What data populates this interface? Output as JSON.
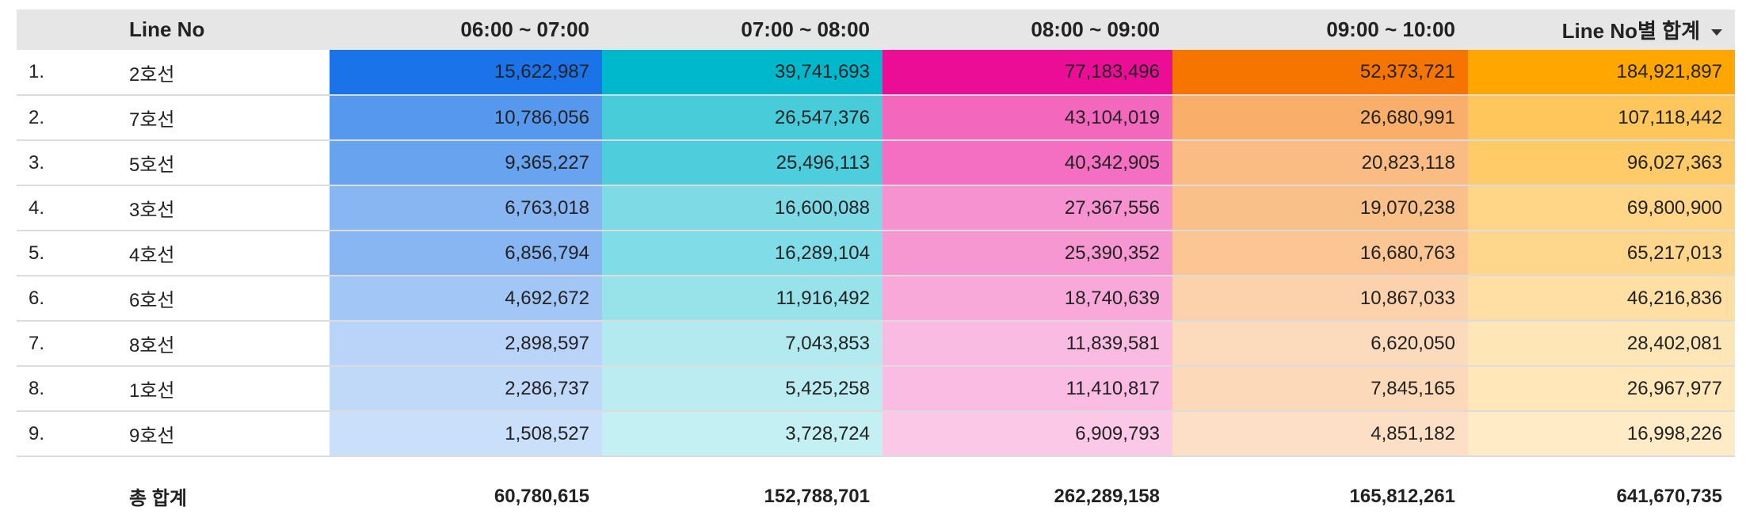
{
  "headers": {
    "rank": "",
    "line": "Line No",
    "h1": "06:00 ~ 07:00",
    "h2": "07:00 ~ 08:00",
    "h3": "08:00 ~ 09:00",
    "h4": "09:00 ~ 10:00",
    "total": "Line No별 합계"
  },
  "sort_icon": "triangle-down-icon",
  "rows": [
    {
      "rank": "1.",
      "line": "2호선",
      "h1": "15,622,987",
      "h2": "39,741,693",
      "h3": "77,183,496",
      "h4": "52,373,721",
      "total": "184,921,897"
    },
    {
      "rank": "2.",
      "line": "7호선",
      "h1": "10,786,056",
      "h2": "26,547,376",
      "h3": "43,104,019",
      "h4": "26,680,991",
      "total": "107,118,442"
    },
    {
      "rank": "3.",
      "line": "5호선",
      "h1": "9,365,227",
      "h2": "25,496,113",
      "h3": "40,342,905",
      "h4": "20,823,118",
      "total": "96,027,363"
    },
    {
      "rank": "4.",
      "line": "3호선",
      "h1": "6,763,018",
      "h2": "16,600,088",
      "h3": "27,367,556",
      "h4": "19,070,238",
      "total": "69,800,900"
    },
    {
      "rank": "5.",
      "line": "4호선",
      "h1": "6,856,794",
      "h2": "16,289,104",
      "h3": "25,390,352",
      "h4": "16,680,763",
      "total": "65,217,013"
    },
    {
      "rank": "6.",
      "line": "6호선",
      "h1": "4,692,672",
      "h2": "11,916,492",
      "h3": "18,740,639",
      "h4": "10,867,033",
      "total": "46,216,836"
    },
    {
      "rank": "7.",
      "line": "8호선",
      "h1": "2,898,597",
      "h2": "7,043,853",
      "h3": "11,839,581",
      "h4": "6,620,050",
      "total": "28,402,081"
    },
    {
      "rank": "8.",
      "line": "1호선",
      "h1": "2,286,737",
      "h2": "5,425,258",
      "h3": "11,410,817",
      "h4": "7,845,165",
      "total": "26,967,977"
    },
    {
      "rank": "9.",
      "line": "9호선",
      "h1": "1,508,527",
      "h2": "3,728,724",
      "h3": "6,909,793",
      "h4": "4,851,182",
      "total": "16,998,226"
    }
  ],
  "footer": {
    "label": "총 합계",
    "h1": "60,780,615",
    "h2": "152,788,701",
    "h3": "262,289,158",
    "h4": "165,812,261",
    "total": "641,670,735"
  },
  "colors": {
    "h1": "#1a73e8",
    "h2": "#00b8cc",
    "h3": "#ec0d96",
    "h4": "#f57500",
    "total": "#ffa600"
  }
}
